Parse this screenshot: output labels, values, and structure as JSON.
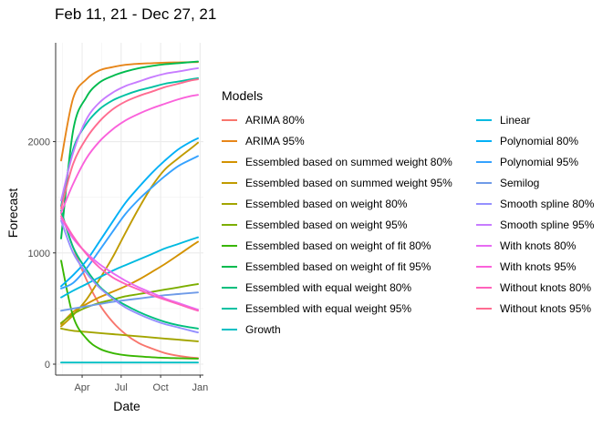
{
  "chart_data": {
    "type": "line",
    "title": "Feb 11, 21 - Dec 27, 21",
    "xlabel": "Date",
    "ylabel": "Forecast",
    "x_ticks": [
      "Apr",
      "Jul",
      "Oct",
      "Jan"
    ],
    "x_tick_dates": [
      "2021-04-01",
      "2021-07-01",
      "2021-10-01",
      "2022-01-01"
    ],
    "xlim": [
      "2021-02-11",
      "2021-12-27"
    ],
    "y_ticks": [
      0,
      1000,
      2000
    ],
    "ylim": [
      0,
      2700
    ],
    "grid": true,
    "legend_title": "Models",
    "legend_position": "right",
    "x": [
      "2021-02-11",
      "2021-03-11",
      "2021-04-11",
      "2021-05-11",
      "2021-06-11",
      "2021-07-11",
      "2021-08-11",
      "2021-09-11",
      "2021-10-11",
      "2021-11-11",
      "2021-12-11",
      "2021-12-27"
    ],
    "series": [
      {
        "name": "ARIMA 80%",
        "color": "#F8766D",
        "values": [
          1360,
          1050,
          760,
          540,
          380,
          270,
          190,
          140,
          100,
          75,
          60,
          55
        ]
      },
      {
        "name": "ARIMA 95%",
        "color": "#E7861A",
        "values": [
          1830,
          2390,
          2560,
          2640,
          2670,
          2690,
          2700,
          2705,
          2710,
          2712,
          2714,
          2715
        ]
      },
      {
        "name": "Essembled based on summed weight 80%",
        "color": "#D39200",
        "values": [
          360,
          470,
          540,
          600,
          650,
          700,
          760,
          830,
          900,
          980,
          1060,
          1100
        ]
      },
      {
        "name": "Essembled based on summed weight 95%",
        "color": "#C09B00",
        "values": [
          340,
          440,
          580,
          760,
          960,
          1180,
          1400,
          1600,
          1750,
          1850,
          1940,
          1990
        ]
      },
      {
        "name": "Essembled based on weight 80%",
        "color": "#A3A500",
        "values": [
          320,
          300,
          290,
          280,
          270,
          260,
          250,
          240,
          230,
          220,
          210,
          205
        ]
      },
      {
        "name": "Essembled based on weight 95%",
        "color": "#7CAE00",
        "values": [
          370,
          450,
          510,
          550,
          580,
          610,
          630,
          650,
          670,
          690,
          710,
          720
        ]
      },
      {
        "name": "Essembled based on weight of fit 80%",
        "color": "#39B600",
        "values": [
          930,
          430,
          230,
          140,
          100,
          80,
          70,
          62,
          57,
          54,
          51,
          50
        ]
      },
      {
        "name": "Essembled based on weight of fit 95%",
        "color": "#00BB4E",
        "values": [
          1130,
          2100,
          2400,
          2530,
          2590,
          2630,
          2660,
          2680,
          2695,
          2705,
          2715,
          2720
        ]
      },
      {
        "name": "Essembled with equal weight 80%",
        "color": "#00BF7D",
        "values": [
          1380,
          1050,
          850,
          700,
          600,
          530,
          470,
          420,
          380,
          350,
          330,
          320
        ]
      },
      {
        "name": "Essembled with equal weight 95%",
        "color": "#00C1A3",
        "values": [
          1420,
          1930,
          2160,
          2290,
          2370,
          2420,
          2460,
          2490,
          2520,
          2540,
          2560,
          2570
        ]
      },
      {
        "name": "Growth",
        "color": "#00BFC4",
        "values": [
          15,
          15,
          15,
          15,
          15,
          15,
          15,
          15,
          15,
          15,
          15,
          15
        ]
      },
      {
        "name": "Linear",
        "color": "#00BAE0",
        "values": [
          600,
          660,
          720,
          780,
          840,
          890,
          940,
          990,
          1040,
          1080,
          1120,
          1140
        ]
      },
      {
        "name": "Polynomial 80%",
        "color": "#00B0F6",
        "values": [
          700,
          800,
          930,
          1100,
          1280,
          1450,
          1590,
          1720,
          1830,
          1930,
          2000,
          2030
        ]
      },
      {
        "name": "Polynomial 95%",
        "color": "#35A2FF",
        "values": [
          680,
          730,
          860,
          1020,
          1190,
          1350,
          1480,
          1590,
          1690,
          1780,
          1840,
          1870
        ]
      },
      {
        "name": "Semilog",
        "color": "#6F9BE8",
        "values": [
          480,
          500,
          520,
          540,
          560,
          575,
          590,
          605,
          620,
          630,
          640,
          645
        ]
      },
      {
        "name": "Smooth spline 80%",
        "color": "#9590FF",
        "values": [
          1290,
          1000,
          820,
          690,
          590,
          510,
          450,
          400,
          360,
          330,
          300,
          285
        ]
      },
      {
        "name": "Smooth spline 95%",
        "color": "#C77CFF",
        "values": [
          1470,
          1900,
          2200,
          2350,
          2440,
          2500,
          2540,
          2580,
          2610,
          2630,
          2650,
          2660
        ]
      },
      {
        "name": "With knots 80%",
        "color": "#E76BF3",
        "values": [
          1310,
          1130,
          1000,
          900,
          820,
          750,
          690,
          640,
          590,
          550,
          510,
          490
        ]
      },
      {
        "name": "With knots 95%",
        "color": "#FA62DB",
        "values": [
          1360,
          1620,
          1850,
          2000,
          2110,
          2190,
          2250,
          2300,
          2340,
          2380,
          2410,
          2420
        ]
      },
      {
        "name": "Without knots 80%",
        "color": "#FF62BC",
        "values": [
          1330,
          1150,
          990,
          870,
          780,
          720,
          670,
          620,
          580,
          540,
          500,
          480
        ]
      },
      {
        "name": "Without knots 95%",
        "color": "#FF6C91",
        "values": [
          1400,
          1800,
          2030,
          2180,
          2290,
          2360,
          2410,
          2450,
          2490,
          2520,
          2550,
          2560
        ]
      }
    ]
  }
}
